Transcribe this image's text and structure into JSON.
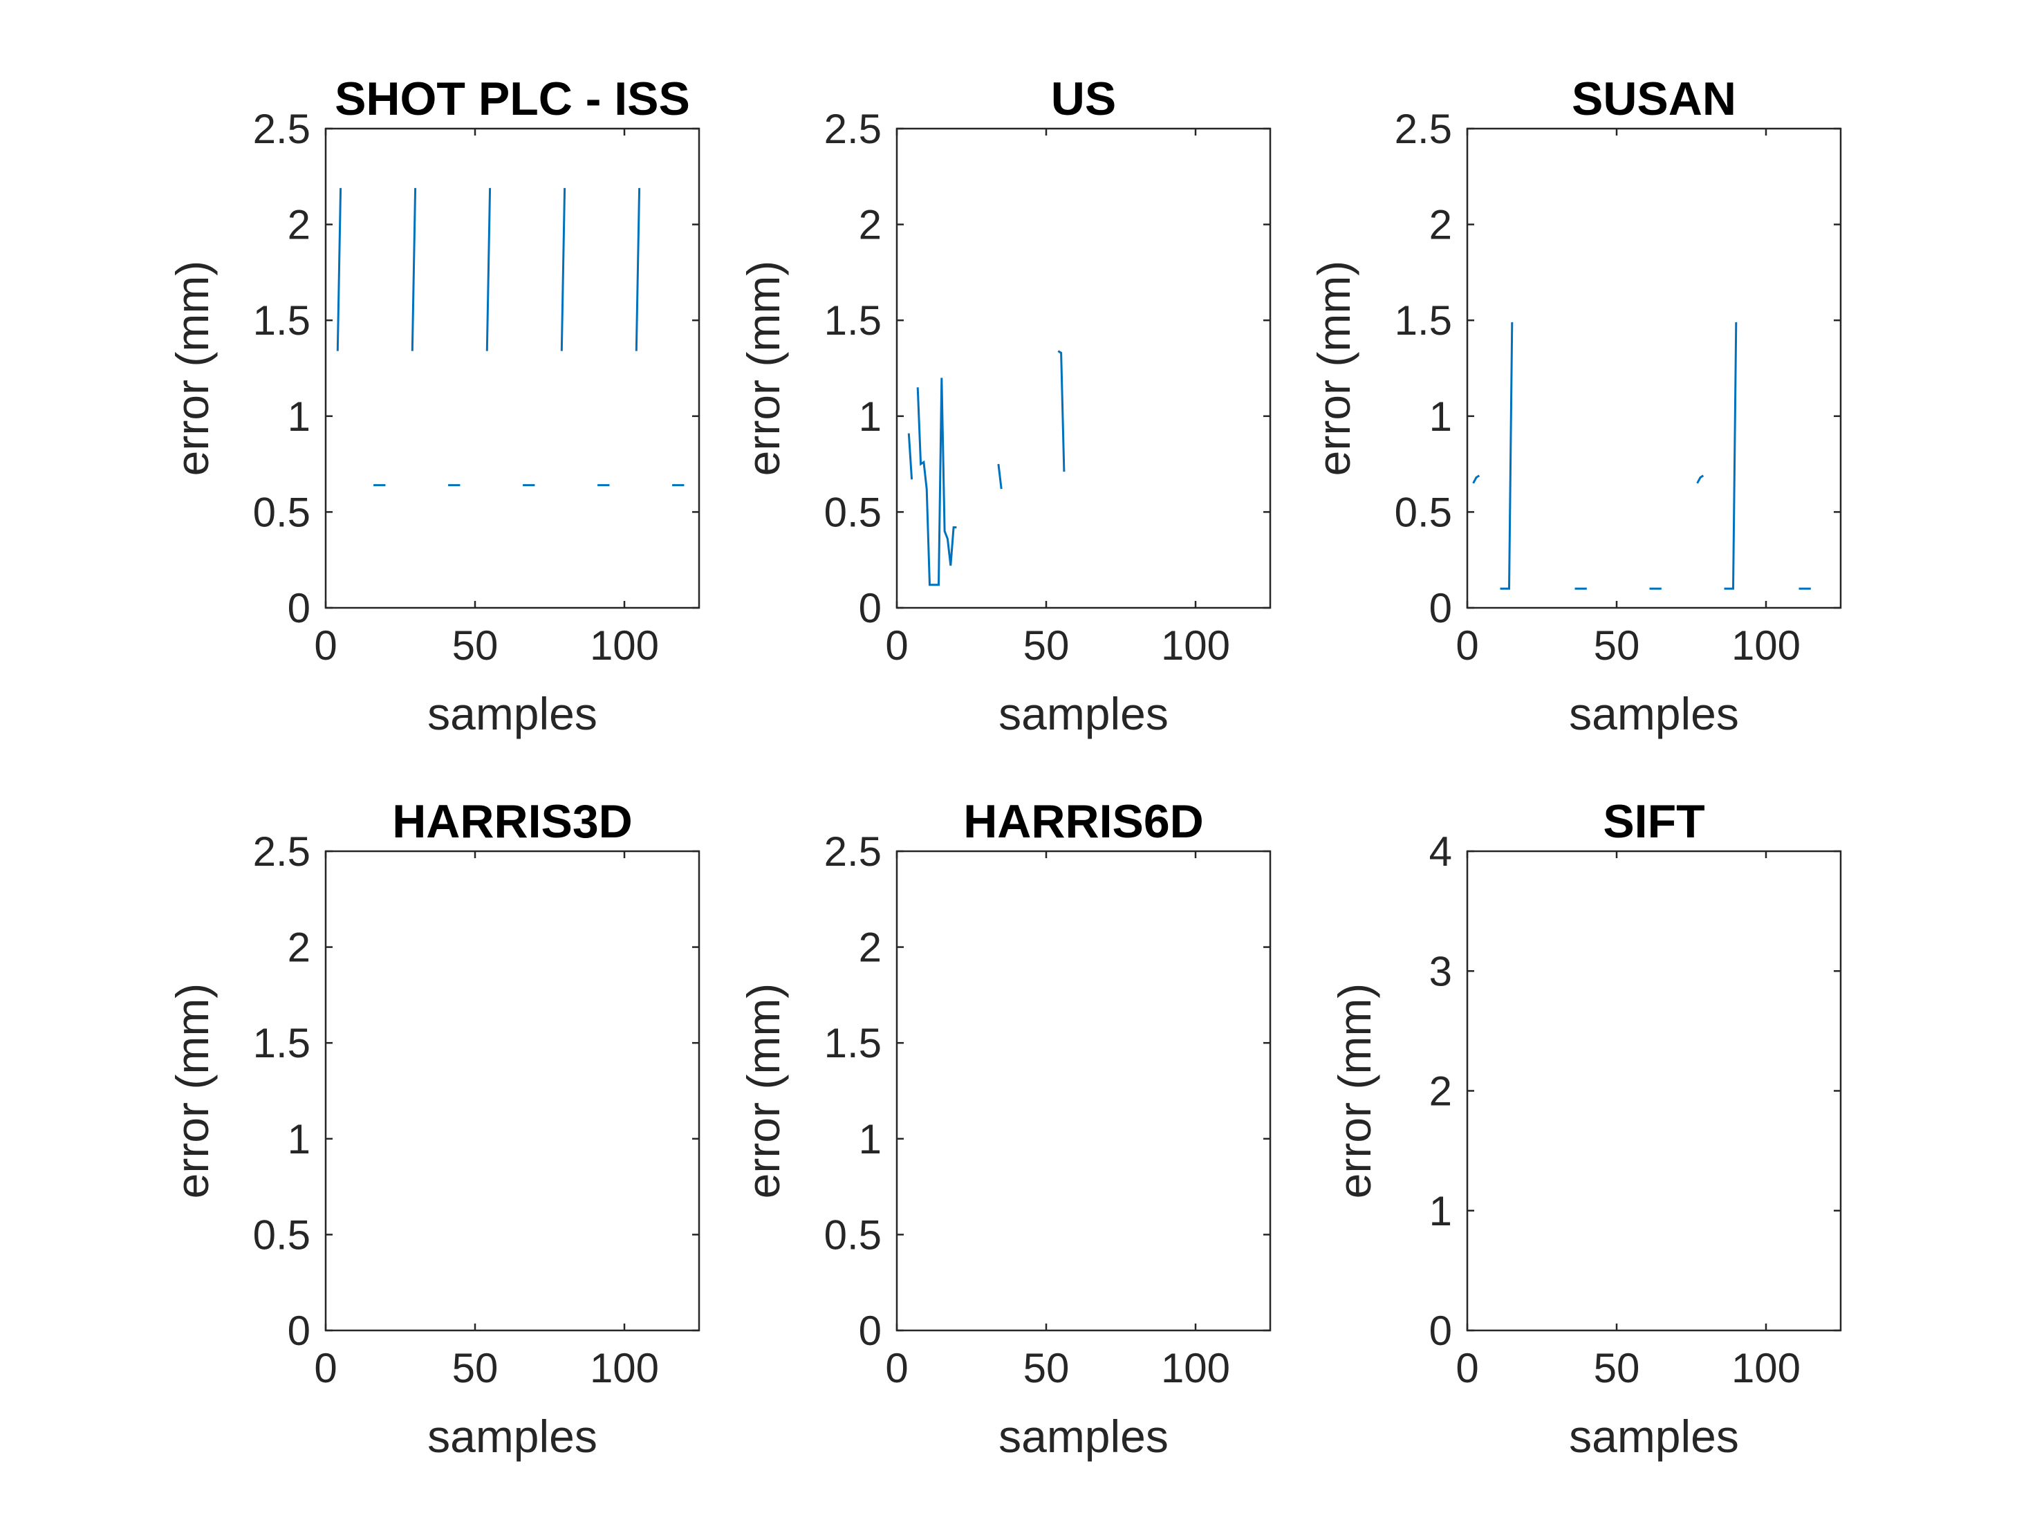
{
  "figure": {
    "line_color": "#0072BD",
    "axes_color": "#262626",
    "background": "#ffffff"
  },
  "chart_data": [
    {
      "type": "line",
      "title": "SHOT PLC - ISS",
      "xlabel": "samples",
      "ylabel": "error (mm)",
      "xlim": [
        0,
        125
      ],
      "ylim": [
        0,
        2.5
      ],
      "xticks": [
        "0",
        "50",
        "100"
      ],
      "yticks": [
        "0",
        "0.5",
        "1",
        "1.5",
        "2",
        "2.5"
      ],
      "grid": false,
      "segments": [
        [
          [
            4,
            1.34
          ],
          [
            5,
            2.19
          ]
        ],
        [
          [
            29,
            1.34
          ],
          [
            30,
            2.19
          ]
        ],
        [
          [
            54,
            1.34
          ],
          [
            55,
            2.19
          ]
        ],
        [
          [
            79,
            1.34
          ],
          [
            80,
            2.19
          ]
        ],
        [
          [
            104,
            1.34
          ],
          [
            105,
            2.19
          ]
        ],
        [
          [
            16,
            0.64
          ],
          [
            20,
            0.64
          ]
        ],
        [
          [
            41,
            0.64
          ],
          [
            45,
            0.64
          ]
        ],
        [
          [
            66,
            0.64
          ],
          [
            70,
            0.64
          ]
        ],
        [
          [
            91,
            0.64
          ],
          [
            95,
            0.64
          ]
        ],
        [
          [
            116,
            0.64
          ],
          [
            120,
            0.64
          ]
        ]
      ]
    },
    {
      "type": "line",
      "title": "US",
      "xlabel": "samples",
      "ylabel": "error (mm)",
      "xlim": [
        0,
        125
      ],
      "ylim": [
        0,
        2.5
      ],
      "xticks": [
        "0",
        "50",
        "100"
      ],
      "yticks": [
        "0",
        "0.5",
        "1",
        "1.5",
        "2",
        "2.5"
      ],
      "grid": false,
      "segments": [
        [
          [
            4,
            0.91
          ],
          [
            5,
            0.67
          ]
        ],
        [
          [
            7,
            1.15
          ],
          [
            8,
            0.75
          ],
          [
            9,
            0.76
          ],
          [
            10,
            0.62
          ],
          [
            11,
            0.12
          ],
          [
            12,
            0.12
          ],
          [
            13,
            0.12
          ],
          [
            14,
            0.12
          ],
          [
            15,
            1.2
          ],
          [
            16,
            0.4
          ],
          [
            17,
            0.36
          ],
          [
            18,
            0.22
          ],
          [
            19,
            0.42
          ],
          [
            20,
            0.42
          ]
        ],
        [
          [
            34,
            0.75
          ],
          [
            35,
            0.62
          ]
        ],
        [
          [
            54,
            1.34
          ],
          [
            55,
            1.33
          ],
          [
            56,
            0.71
          ]
        ]
      ]
    },
    {
      "type": "line",
      "title": "SUSAN",
      "xlabel": "samples",
      "ylabel": "error (mm)",
      "xlim": [
        0,
        125
      ],
      "ylim": [
        0,
        2.5
      ],
      "xticks": [
        "0",
        "50",
        "100"
      ],
      "yticks": [
        "0",
        "0.5",
        "1",
        "1.5",
        "2",
        "2.5"
      ],
      "grid": false,
      "segments": [
        [
          [
            2,
            0.65
          ],
          [
            3,
            0.68
          ],
          [
            4,
            0.69
          ]
        ],
        [
          [
            11,
            0.1
          ],
          [
            14,
            0.1
          ],
          [
            15,
            1.49
          ]
        ],
        [
          [
            36,
            0.1
          ],
          [
            40,
            0.1
          ]
        ],
        [
          [
            61,
            0.1
          ],
          [
            65,
            0.1
          ]
        ],
        [
          [
            77,
            0.65
          ],
          [
            78,
            0.68
          ],
          [
            79,
            0.69
          ]
        ],
        [
          [
            86,
            0.1
          ],
          [
            89,
            0.1
          ],
          [
            90,
            1.49
          ]
        ],
        [
          [
            111,
            0.1
          ],
          [
            115,
            0.1
          ]
        ]
      ]
    },
    {
      "type": "line",
      "title": "HARRIS3D",
      "xlabel": "samples",
      "ylabel": "error (mm)",
      "xlim": [
        0,
        125
      ],
      "ylim": [
        0,
        2.5
      ],
      "xticks": [
        "0",
        "50",
        "100"
      ],
      "yticks": [
        "0",
        "0.5",
        "1",
        "1.5",
        "2",
        "2.5"
      ],
      "grid": false,
      "segments": []
    },
    {
      "type": "line",
      "title": "HARRIS6D",
      "xlabel": "samples",
      "ylabel": "error (mm)",
      "xlim": [
        0,
        125
      ],
      "ylim": [
        0,
        2.5
      ],
      "xticks": [
        "0",
        "50",
        "100"
      ],
      "yticks": [
        "0",
        "0.5",
        "1",
        "1.5",
        "2",
        "2.5"
      ],
      "grid": false,
      "segments": []
    },
    {
      "type": "line",
      "title": "SIFT",
      "xlabel": "samples",
      "ylabel": "error (mm)",
      "xlim": [
        0,
        125
      ],
      "ylim": [
        0,
        4
      ],
      "xticks": [
        "0",
        "50",
        "100"
      ],
      "yticks": [
        "0",
        "1",
        "2",
        "3",
        "4"
      ],
      "grid": false,
      "segments": []
    }
  ]
}
